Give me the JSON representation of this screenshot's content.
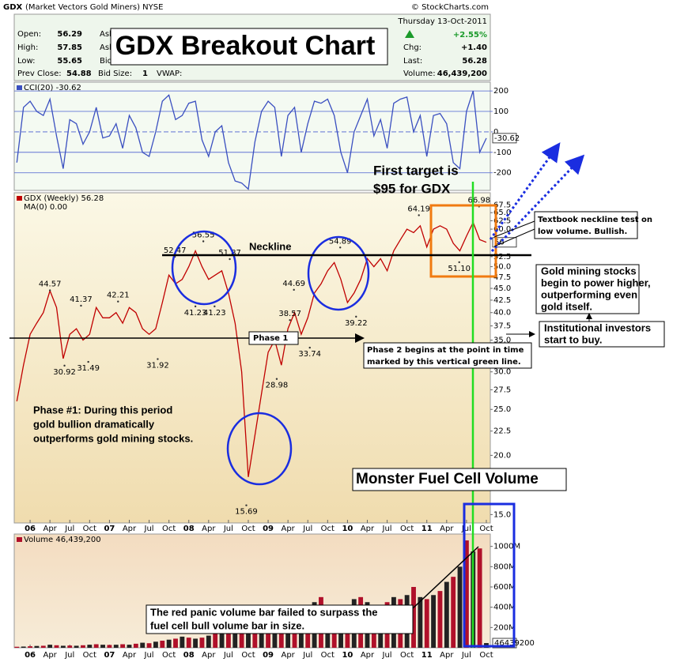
{
  "header": {
    "symbol": "GDX",
    "name": "(Market Vectors Gold Miners) NYSE",
    "source": "© StockCharts.com",
    "date": "Thursday  13-Oct-2011",
    "open_label": "Open:",
    "open": "56.29",
    "high_label": "High:",
    "high": "57.85",
    "low_label": "Low:",
    "low": "55.65",
    "prev_close_label": "Prev Close:",
    "prev_close": "54.88",
    "ask1": "Ask",
    "ask2": "Ask",
    "bid": "Bid",
    "bid_size_label": "Bid Size:",
    "bid_size": "1",
    "vwap_label": "VWAP:",
    "pct_change": "+2.55%",
    "chg_label": "Chg:",
    "chg": "+1.40",
    "last_label": "Last:",
    "last": "56.28",
    "volume_label": "Volume:",
    "volume": "46,439,200"
  },
  "chart_data": [
    {
      "type": "line",
      "legend": "CCI(20) -30.62",
      "color": "#3a4fc0",
      "current_label": "-30.62",
      "grid": true,
      "x": [
        -2,
        -1,
        0,
        1,
        2,
        3,
        4,
        5,
        6,
        7,
        8,
        9,
        10,
        11,
        12,
        13,
        14,
        15,
        16,
        17,
        18,
        19,
        20,
        21,
        22,
        23,
        24,
        25,
        26,
        27,
        28,
        29,
        30,
        31,
        32,
        33,
        34,
        35,
        36,
        37,
        38,
        39,
        40,
        41,
        42,
        43,
        44,
        45,
        46,
        47,
        48,
        49,
        50,
        51,
        52,
        53,
        54,
        55,
        56,
        57,
        58,
        59,
        60,
        61,
        62,
        63,
        64,
        65,
        66,
        67,
        68,
        69
      ],
      "values": [
        -150,
        120,
        150,
        100,
        80,
        160,
        -20,
        -180,
        60,
        40,
        -60,
        0,
        120,
        -30,
        -20,
        40,
        -80,
        80,
        20,
        -100,
        -120,
        0,
        150,
        180,
        60,
        80,
        140,
        150,
        -40,
        -120,
        0,
        30,
        -150,
        -240,
        -250,
        -280,
        -50,
        100,
        150,
        120,
        -120,
        80,
        120,
        -100,
        40,
        150,
        140,
        160,
        80,
        -100,
        -200,
        0,
        80,
        160,
        -20,
        60,
        -80,
        140,
        160,
        170,
        0,
        80,
        -120,
        80,
        90,
        40,
        -150,
        -180,
        100,
        200,
        -100,
        -30.62
      ],
      "xlim": [
        -2.4,
        69.6
      ],
      "ylim": [
        -286,
        243
      ],
      "yticks": [
        200,
        100,
        0,
        -100,
        -200
      ]
    },
    {
      "type": "line",
      "legend": "GDX (Weekly) 56.28",
      "legend2": "MA(0) 0.00",
      "color": "#c00000",
      "current_label": "56",
      "log_scale": true,
      "grid": false,
      "x": [
        -2,
        -1,
        0,
        1,
        2,
        3,
        4,
        5,
        6,
        7,
        8,
        9,
        10,
        11,
        12,
        13,
        14,
        15,
        16,
        17,
        18,
        19,
        20,
        21,
        22,
        23,
        24,
        25,
        26,
        27,
        28,
        29,
        30,
        31,
        32,
        33,
        34,
        35,
        36,
        37,
        38,
        39,
        40,
        41,
        42,
        43,
        44,
        45,
        46,
        47,
        48,
        49,
        50,
        51,
        52,
        53,
        54,
        55,
        56,
        57,
        58,
        59,
        60,
        61,
        62,
        63,
        64,
        65,
        66,
        67,
        68,
        69
      ],
      "values": [
        26,
        31,
        36,
        38,
        40,
        44.5,
        41,
        32,
        36,
        37,
        35,
        36,
        41,
        39,
        39,
        40,
        38,
        41,
        40,
        37,
        36,
        37,
        42,
        48,
        46,
        47,
        50,
        54,
        50,
        47,
        48,
        49,
        44,
        38,
        30,
        18,
        22,
        27,
        33,
        35,
        31,
        37,
        40,
        36,
        39,
        44,
        46,
        49,
        51,
        47,
        42,
        44,
        47,
        52,
        50,
        52,
        49,
        54,
        57,
        60,
        59,
        61,
        55,
        60,
        61,
        60,
        56,
        54,
        58,
        62,
        57,
        56.28
      ],
      "price_labels": [
        {
          "x": 3,
          "value": 44.57
        },
        {
          "x": 7.7,
          "value": 41.37
        },
        {
          "x": 13.3,
          "value": 42.21
        },
        {
          "x": 5.2,
          "value": 30.92
        },
        {
          "x": 8.8,
          "value": 31.49
        },
        {
          "x": 19.3,
          "value": 31.92
        },
        {
          "x": 21.9,
          "value": 52.47
        },
        {
          "x": 26.2,
          "value": 56.55
        },
        {
          "x": 30.2,
          "value": 51.87
        },
        {
          "x": 25,
          "value": 41.23
        },
        {
          "x": 27.9,
          "value": 41.23
        },
        {
          "x": 39.9,
          "value": 44.69
        },
        {
          "x": 39.3,
          "value": 38.57
        },
        {
          "x": 42.3,
          "value": 33.74
        },
        {
          "x": 37.3,
          "value": 28.98
        },
        {
          "x": 32.7,
          "value": 15.69
        },
        {
          "x": 46.9,
          "value": 54.89
        },
        {
          "x": 49.3,
          "value": 39.22
        },
        {
          "x": 58.8,
          "value": 64.19
        },
        {
          "x": 67.9,
          "value": 66.98
        },
        {
          "x": 64.9,
          "value": 51.1,
          "label": "51.10"
        }
      ],
      "xlim": [
        -2.4,
        69.6
      ],
      "ylim": [
        14.4,
        71.6
      ],
      "yticks": [
        {
          "value": 15,
          "label": "15.0"
        },
        {
          "value": 20,
          "label": "20.0"
        },
        {
          "value": 22.5,
          "label": "22.5"
        },
        {
          "value": 25,
          "label": "25.0"
        },
        {
          "value": 27.5,
          "label": "27.5"
        },
        {
          "value": 30,
          "label": "30.0"
        },
        {
          "value": 32.5,
          "label": "32.5"
        },
        {
          "value": 35,
          "label": "35.0"
        },
        {
          "value": 37.5,
          "label": "37.5"
        },
        {
          "value": 40,
          "label": "40.0"
        },
        {
          "value": 42.5,
          "label": "42.5"
        },
        {
          "value": 45,
          "label": "45.0"
        },
        {
          "value": 47.5,
          "label": "47.5"
        },
        {
          "value": 50,
          "label": "50.0"
        },
        {
          "value": 52.5,
          "label": "52.5"
        },
        {
          "value": 60,
          "label": "60.0"
        },
        {
          "value": 62.5,
          "label": "62.5"
        },
        {
          "value": 65,
          "label": "65.0"
        },
        {
          "value": 67.5,
          "label": "67.5"
        }
      ],
      "xticks": [
        {
          "value": 0,
          "label": "06"
        },
        {
          "value": 3,
          "label": "Apr"
        },
        {
          "value": 6,
          "label": "Jul"
        },
        {
          "value": 9,
          "label": "Oct"
        },
        {
          "value": 12,
          "label": "07"
        },
        {
          "value": 15,
          "label": "Apr"
        },
        {
          "value": 18,
          "label": "Jul"
        },
        {
          "value": 21,
          "label": "Oct"
        },
        {
          "value": 24,
          "label": "08"
        },
        {
          "value": 27,
          "label": "Apr"
        },
        {
          "value": 30,
          "label": "Jul"
        },
        {
          "value": 33,
          "label": "Oct"
        },
        {
          "value": 36,
          "label": "09"
        },
        {
          "value": 39,
          "label": "Apr"
        },
        {
          "value": 42,
          "label": "Jul"
        },
        {
          "value": 45,
          "label": "Oct"
        },
        {
          "value": 48,
          "label": "10"
        },
        {
          "value": 51,
          "label": "Apr"
        },
        {
          "value": 54,
          "label": "Jul"
        },
        {
          "value": 57,
          "label": "Oct"
        },
        {
          "value": 60,
          "label": "11"
        },
        {
          "value": 63,
          "label": "Apr"
        },
        {
          "value": 66,
          "label": "Jul"
        },
        {
          "value": 69,
          "label": "Oct"
        }
      ]
    },
    {
      "type": "bar",
      "legend": "Volume 46,439,200",
      "color": "#b0102a",
      "current_label": "46439200",
      "x": [
        -2,
        -1,
        0,
        1,
        2,
        3,
        4,
        5,
        6,
        7,
        8,
        9,
        10,
        11,
        12,
        13,
        14,
        15,
        16,
        17,
        18,
        19,
        20,
        21,
        22,
        23,
        24,
        25,
        26,
        27,
        28,
        29,
        30,
        31,
        32,
        33,
        34,
        35,
        36,
        37,
        38,
        39,
        40,
        41,
        42,
        43,
        44,
        45,
        46,
        47,
        48,
        49,
        50,
        51,
        52,
        53,
        54,
        55,
        56,
        57,
        58,
        59,
        60,
        61,
        62,
        63,
        64,
        65,
        66,
        67,
        68,
        69
      ],
      "values": [
        10,
        12,
        15,
        18,
        20,
        30,
        25,
        20,
        22,
        20,
        25,
        30,
        35,
        30,
        28,
        30,
        35,
        30,
        40,
        50,
        45,
        60,
        70,
        80,
        90,
        110,
        100,
        90,
        100,
        120,
        150,
        200,
        250,
        300,
        320,
        280,
        250,
        300,
        280,
        260,
        300,
        350,
        320,
        400,
        380,
        450,
        500,
        420,
        380,
        400,
        420,
        480,
        500,
        450,
        420,
        380,
        450,
        500,
        480,
        520,
        600,
        500,
        480,
        520,
        560,
        650,
        700,
        800,
        1059,
        950,
        980,
        46.4392
      ],
      "xlim": [
        -2.4,
        69.6
      ],
      "ylim": [
        0,
        1122
      ],
      "yticks": [
        {
          "value": 200,
          "label": "200M"
        },
        {
          "value": 400,
          "label": "400M"
        },
        {
          "value": 600,
          "label": "600M"
        },
        {
          "value": 800,
          "label": "800M"
        },
        {
          "value": 1000,
          "label": "1000M"
        }
      ],
      "xticks": [
        {
          "value": 0,
          "label": "06"
        },
        {
          "value": 3,
          "label": "Apr"
        },
        {
          "value": 6,
          "label": "Jul"
        },
        {
          "value": 9,
          "label": "Oct"
        },
        {
          "value": 12,
          "label": "07"
        },
        {
          "value": 15,
          "label": "Apr"
        },
        {
          "value": 18,
          "label": "Jul"
        },
        {
          "value": 21,
          "label": "Oct"
        },
        {
          "value": 24,
          "label": "08"
        },
        {
          "value": 27,
          "label": "Apr"
        },
        {
          "value": 30,
          "label": "Jul"
        },
        {
          "value": 33,
          "label": "Oct"
        },
        {
          "value": 36,
          "label": "09"
        },
        {
          "value": 39,
          "label": "Apr"
        },
        {
          "value": 42,
          "label": "Jul"
        },
        {
          "value": 45,
          "label": "Oct"
        },
        {
          "value": 48,
          "label": "10"
        },
        {
          "value": 51,
          "label": "Apr"
        },
        {
          "value": 54,
          "label": "Jul"
        },
        {
          "value": 57,
          "label": "Oct"
        },
        {
          "value": 60,
          "label": "11"
        },
        {
          "value": 63,
          "label": "Apr"
        },
        {
          "value": 66,
          "label": "Jul"
        },
        {
          "value": 69,
          "label": "Oct"
        }
      ]
    }
  ],
  "annotations": {
    "title": "GDX Breakout Chart",
    "target": [
      "First target is",
      "$95 for GDX"
    ],
    "neckline": "Neckline",
    "phase1": "Phase 1",
    "phase1_note": [
      "Phase #1:  During this period",
      "gold bullion dramatically",
      "outperforms gold mining stocks."
    ],
    "phase2_note": [
      "Phase 2 begins at the point in time",
      "marked by this vertical green  line."
    ],
    "monster": "Monster Fuel Cell Volume",
    "neckline_test": [
      "Textbook neckline test on",
      "low volume.  Bullish."
    ],
    "power": [
      "Gold mining stocks",
      "begin to power higher,",
      "outperforming even",
      "gold itself."
    ],
    "institutional": [
      "Institutional investors",
      "start to buy."
    ],
    "panic": [
      "The red panic volume bar failed to surpass the",
      "fuel cell bull volume bar in size."
    ]
  }
}
